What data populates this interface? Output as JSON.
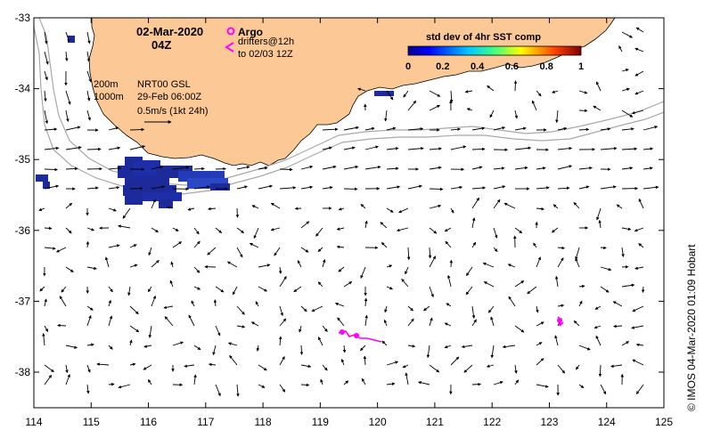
{
  "header": {
    "date": "02-Mar-2020",
    "time": "04Z"
  },
  "argo": {
    "label": "Argo"
  },
  "drifters": {
    "line1": "drifters@12h",
    "line2": "to 02/03 12Z"
  },
  "contours": {
    "c200": "200m",
    "c1000": "1000m"
  },
  "model": {
    "name": "NRT00 GSL",
    "time": "29-Feb 06:00Z"
  },
  "scale": {
    "label": "0.5m/s (1kt 24h)"
  },
  "colorbar": {
    "title": "std dev of 4hr SST comp",
    "ticks": [
      "0",
      "0.2",
      "0.4",
      "0.6",
      "0.8",
      "1"
    ]
  },
  "credit": "© IMOS 04-Mar-2020 01:09 Hobart",
  "axes": {
    "x_ticks": [
      "114",
      "115",
      "116",
      "117",
      "118",
      "119",
      "120",
      "121",
      "122",
      "123",
      "124",
      "125"
    ],
    "y_ticks": [
      "-33",
      "-34",
      "-35",
      "-36",
      "-37",
      "-38"
    ]
  },
  "colors": {
    "land": "#fbc896",
    "argo": "#ff00ff",
    "sst_low": "#1c2a9a",
    "contour": "#a8a8a8"
  }
}
